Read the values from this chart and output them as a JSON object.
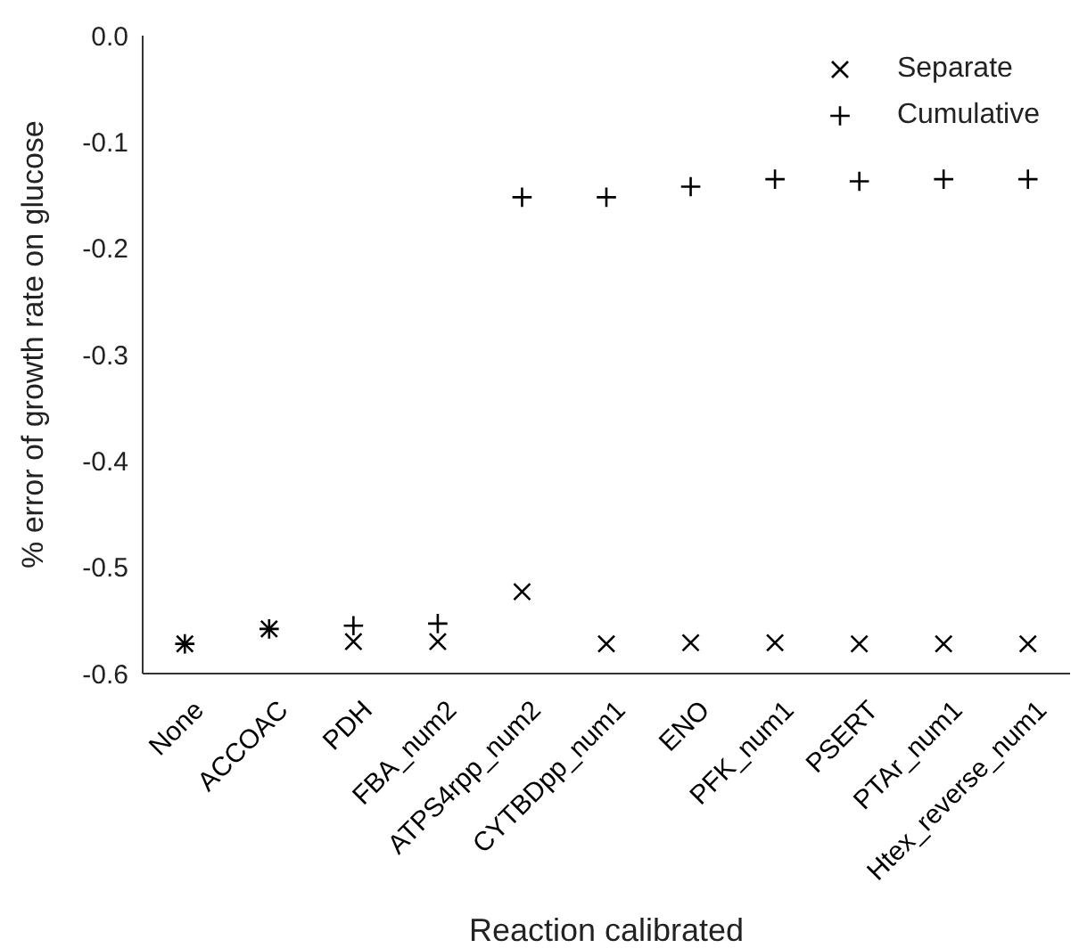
{
  "chart_data": {
    "type": "scatter",
    "xlabel": "Reaction calibrated",
    "ylabel": "% error of growth rate on glucose",
    "categories": [
      "None",
      "ACCOAC",
      "PDH",
      "FBA_num2",
      "ATPS4rpp_num2",
      "CYTBDpp_num1",
      "ENO",
      "PFK_num1",
      "PSERT",
      "PTAr_num1",
      "Htex_reverse_num1"
    ],
    "series": [
      {
        "name": "Separate",
        "color": "#000000",
        "marker": "cross",
        "values": [
          -0.572,
          -0.558,
          -0.57,
          -0.57,
          -0.523,
          -0.572,
          -0.571,
          -0.571,
          -0.572,
          -0.572,
          -0.572
        ]
      },
      {
        "name": "Cumulative",
        "color": "#000000",
        "marker": "plus",
        "values": [
          -0.572,
          -0.558,
          -0.555,
          -0.553,
          -0.152,
          -0.152,
          -0.142,
          -0.135,
          -0.137,
          -0.135,
          -0.135
        ]
      }
    ],
    "ylim": [
      -0.6,
      0.0
    ],
    "yticks": [
      -0.6,
      -0.5,
      -0.4,
      -0.3,
      -0.2,
      -0.1,
      {
        "value": 0,
        "label": "0.0"
      }
    ],
    "legend": "top right"
  }
}
